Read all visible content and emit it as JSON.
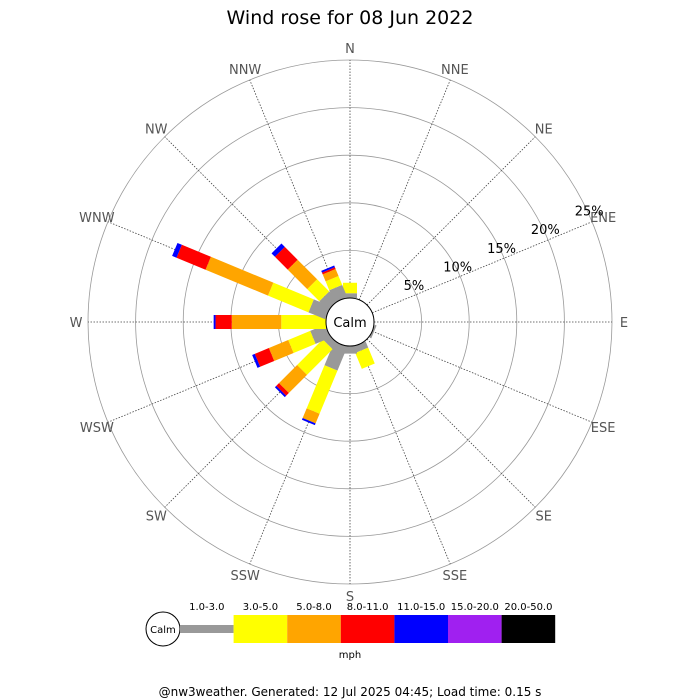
{
  "chart_data": {
    "type": "wind_rose",
    "title": "Wind rose for 08 Jun 2022",
    "calm_label": "Calm",
    "directions": [
      "N",
      "NNE",
      "NE",
      "ENE",
      "E",
      "ESE",
      "SE",
      "SSE",
      "S",
      "SSW",
      "SW",
      "WSW",
      "W",
      "WNW",
      "NW",
      "NNW"
    ],
    "radial_ticks": [
      5,
      10,
      15,
      20,
      25
    ],
    "radial_tick_labels": [
      "5%",
      "10%",
      "15%",
      "20%",
      "25%"
    ],
    "rmax": 25,
    "speed_bins": [
      "1.0-3.0",
      "3.0-5.0",
      "5.0-8.0",
      "8.0-11.0",
      "11.0-15.0",
      "15.0-20.0",
      "20.0-50.0"
    ],
    "speed_unit": "mph",
    "colors": {
      "1.0-3.0": "#999999",
      "3.0-5.0": "#ffff00",
      "5.0-8.0": "#ffa500",
      "8.0-11.0": "#ff0000",
      "11.0-15.0": "#0000ff",
      "15.0-20.0": "#a020f0",
      "20.0-50.0": "#000000"
    },
    "series_note_cumulative_percent": "values below are cumulative percent frequency per direction, stacked by speed bin",
    "data": {
      "N": [
        0.5,
        1.1,
        0,
        0,
        0,
        0,
        0
      ],
      "NNE": [
        0,
        0,
        0,
        0,
        0,
        0,
        0
      ],
      "NE": [
        0,
        0,
        0,
        0,
        0,
        0,
        0
      ],
      "ENE": [
        0,
        0,
        0,
        0,
        0,
        0,
        0
      ],
      "E": [
        0,
        0,
        0,
        0,
        0,
        0,
        0
      ],
      "ESE": [
        0.2,
        0,
        0,
        0,
        0,
        0,
        0
      ],
      "SE": [
        0,
        0,
        0,
        0,
        0,
        0,
        0
      ],
      "SSE": [
        0.7,
        1.8,
        0,
        0,
        0,
        0,
        0
      ],
      "S": [
        0.8,
        0,
        0,
        0,
        0,
        0,
        0
      ],
      "SSW": [
        2.7,
        4.9,
        1.1,
        0,
        0.2,
        0,
        0
      ],
      "SW": [
        0.8,
        3.8,
        2.7,
        0.4,
        0.2,
        0,
        0
      ],
      "WSW": [
        1.7,
        2.5,
        2.2,
        1.6,
        0.3,
        0,
        0
      ],
      "W": [
        0,
        4.7,
        5.2,
        1.7,
        0.2,
        0,
        0
      ],
      "WNW": [
        1.9,
        4.6,
        7.1,
        3.3,
        0.5,
        0,
        0
      ],
      "NW": [
        1.3,
        1.8,
        2.9,
        1.9,
        0.5,
        0,
        0
      ],
      "NNW": [
        1.4,
        1.0,
        0.8,
        0.2,
        0.2,
        0,
        0
      ]
    }
  },
  "footer": {
    "text": "@nw3weather. Generated: 12 Jul 2025 04:45; Load time: 0.15 s"
  }
}
